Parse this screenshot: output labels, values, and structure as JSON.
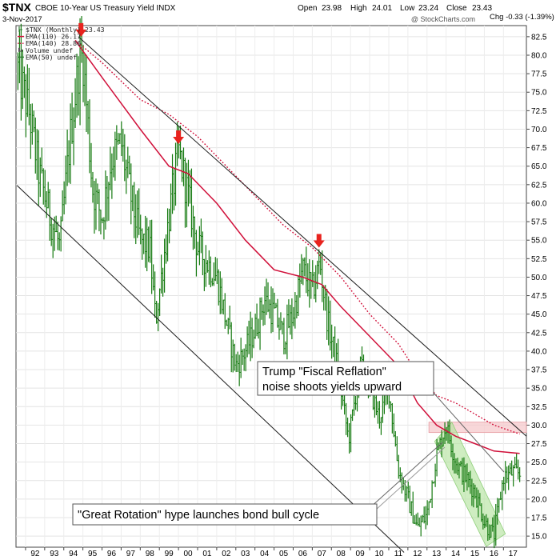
{
  "header": {
    "symbol": "$TNX",
    "description": "CBOE 10-Year US Treasury Yield INDX",
    "date": "3-Nov-2017",
    "open_label": "Open",
    "open": "23.98",
    "high_label": "High",
    "high": "24.01",
    "low_label": "Low",
    "low": "23.24",
    "close_label": "Close",
    "close": "23.43",
    "chg_label": "Chg",
    "chg": "-0.33 (-1.39%)",
    "watermark": "@ StockCharts.com"
  },
  "legend": [
    {
      "label": "$TNX (Monthly) 23.43",
      "color": "#2e7d32",
      "kind": "price"
    },
    {
      "label": "EMA(110) 26.17",
      "color": "#d0103a",
      "kind": "solid"
    },
    {
      "label": "EMA(140) 28.80",
      "color": "#d0103a",
      "kind": "dotted"
    },
    {
      "label": "Volume undef",
      "color": "#555555",
      "kind": "volume"
    },
    {
      "label": "EMA(50) undef",
      "color": "#2e7d32",
      "kind": "solid"
    }
  ],
  "annotations": {
    "fiscal_line1": "Trump \"Fiscal Reflation\"",
    "fiscal_line2": "noise shoots yields upward",
    "rotation": "\"Great Rotation\" hype launches bond bull cycle"
  },
  "colors": {
    "price": "#157a10",
    "ema": "#d0103a",
    "arrow": "#e8231e",
    "channel": "#1a1a1a",
    "green_zone": "#b5e3a0",
    "red_zone": "#f6c9cc"
  },
  "chart_data": {
    "type": "line",
    "x_tick_labels": [
      "92",
      "93",
      "94",
      "95",
      "96",
      "97",
      "98",
      "99",
      "00",
      "01",
      "02",
      "03",
      "04",
      "05",
      "06",
      "07",
      "08",
      "09",
      "10",
      "11",
      "12",
      "13",
      "14",
      "15",
      "16",
      "17"
    ],
    "y_tick_labels": [
      "82.5",
      "80.0",
      "77.5",
      "75.0",
      "72.5",
      "70.0",
      "67.5",
      "65.0",
      "62.5",
      "60.0",
      "57.5",
      "55.0",
      "52.5",
      "50.0",
      "47.5",
      "45.0",
      "42.5",
      "40.0",
      "37.5",
      "35.0",
      "32.5",
      "30.0",
      "27.5",
      "25.0",
      "22.5",
      "20.0",
      "17.5",
      "15.0"
    ],
    "ylim": [
      13.5,
      84
    ],
    "xlim": [
      1991.5,
      2018.2
    ],
    "series": [
      {
        "name": "$TNX (Monthly)",
        "x": [
          1991.6,
          1992.2,
          1992.7,
          1993.3,
          1993.8,
          1994.3,
          1994.8,
          1995.0,
          1995.5,
          1996.0,
          1996.5,
          1997.0,
          1997.5,
          1998.0,
          1998.5,
          1998.8,
          1999.5,
          2000.0,
          2000.5,
          2001.0,
          2001.5,
          2002.0,
          2002.5,
          2003.0,
          2003.5,
          2004.0,
          2004.5,
          2005.0,
          2005.5,
          2006.0,
          2006.5,
          2007.0,
          2007.4,
          2007.8,
          2008.3,
          2008.9,
          2009.5,
          2010.0,
          2010.5,
          2011.0,
          2011.5,
          2012.0,
          2012.5,
          2013.0,
          2013.5,
          2014.0,
          2014.5,
          2015.0,
          2015.5,
          2016.0,
          2016.5,
          2017.0,
          2017.5,
          2017.85
        ],
        "y": [
          78,
          72,
          64,
          58,
          54,
          68,
          79,
          80,
          62,
          58,
          66,
          68,
          61,
          55,
          54,
          44,
          58,
          67,
          61,
          54,
          52,
          50,
          44,
          38,
          40,
          43,
          47,
          45,
          42,
          45,
          51,
          48,
          52,
          44,
          38,
          28,
          38,
          35,
          31,
          35,
          24,
          20,
          16,
          18,
          26,
          30,
          25,
          23,
          21,
          17,
          15,
          23,
          23.6,
          23.43
        ]
      },
      {
        "name": "EMA(110)",
        "x": [
          1994.6,
          1996,
          1998,
          1999.5,
          2000.5,
          2002,
          2003.5,
          2005,
          2006.5,
          2007.5,
          2008.5,
          2010,
          2011.5,
          2012.5,
          2013.5,
          2014.5,
          2015.5,
          2016.5,
          2017.85
        ],
        "y": [
          82,
          77,
          70,
          65,
          64,
          60,
          55,
          51,
          50,
          49,
          46,
          42,
          38,
          33,
          30,
          28.5,
          27.5,
          26.5,
          26.17
        ]
      },
      {
        "name": "EMA(140)",
        "x": [
          1994.6,
          1996,
          1998,
          1999.5,
          2001,
          2002.5,
          2004,
          2005.5,
          2007,
          2008.5,
          2010,
          2011.5,
          2012.5,
          2013.5,
          2014.5,
          2015.5,
          2016.5,
          2017.85
        ],
        "y": [
          82,
          79,
          74,
          72,
          69,
          65,
          61,
          57,
          54,
          50,
          45,
          41,
          37,
          34,
          33,
          31.5,
          30,
          28.8
        ]
      }
    ],
    "markers": [
      {
        "type": "arrow-down",
        "x": 1994.9,
        "y": 82.5
      },
      {
        "type": "arrow-down",
        "x": 2000.0,
        "y": 68
      },
      {
        "type": "arrow-down",
        "x": 2007.35,
        "y": 54
      }
    ],
    "trendlines": [
      {
        "x1": 1994.8,
        "y1": 82.4,
        "x2": 2018.2,
        "y2": 28.5
      },
      {
        "x1": 1991.55,
        "y1": 62.4,
        "x2": 2011.8,
        "y2": 12.8
      }
    ],
    "zones": [
      {
        "kind": "resistance",
        "x1": 2013.1,
        "x2": 2018.2,
        "y1": 29.0,
        "y2": 30.4
      },
      {
        "kind": "channel",
        "x": [
          2013.4,
          2014.3,
          2017.1,
          2016.1
        ],
        "y": [
          27.8,
          30.4,
          15.3,
          13.6
        ]
      }
    ]
  }
}
